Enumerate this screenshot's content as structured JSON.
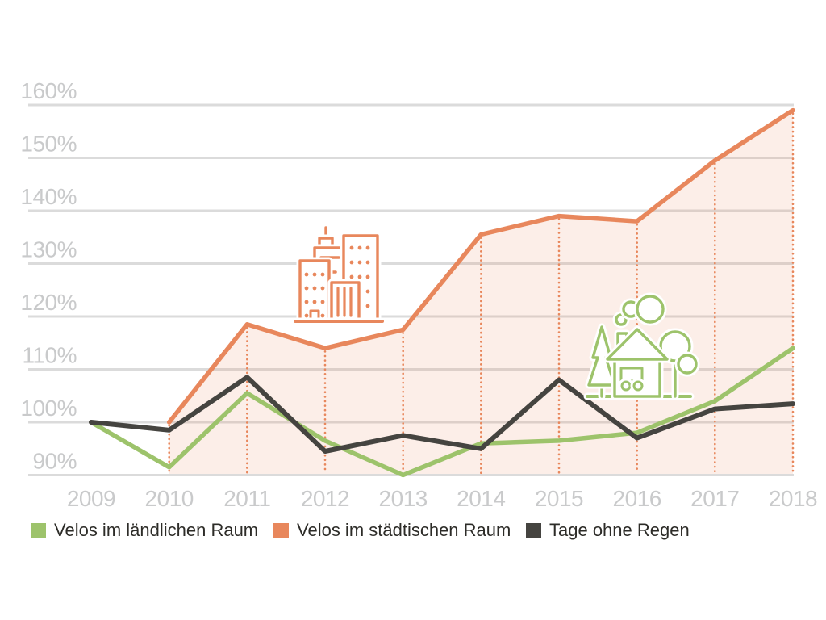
{
  "chart_data": {
    "type": "line",
    "title": "",
    "categories": [
      "2009",
      "2010",
      "2011",
      "2012",
      "2013",
      "2014",
      "2015",
      "2016",
      "2017",
      "2018"
    ],
    "y_ticks": [
      "160%",
      "150%",
      "140%",
      "130%",
      "120%",
      "110%",
      "100%",
      "90%"
    ],
    "ylim": [
      90,
      160
    ],
    "grid": "horizontal",
    "legend_position": "bottom",
    "series": [
      {
        "name": "Velos im ländlichen Raum",
        "color": "#9DC36B",
        "values": [
          100,
          91.5,
          105.5,
          96.5,
          90,
          96,
          96.5,
          98,
          104,
          114
        ]
      },
      {
        "name": "Velos im städtischen Raum",
        "color": "#E8875C",
        "values": [
          null,
          100,
          118.5,
          114,
          117.5,
          135.5,
          139,
          138,
          149.5,
          159
        ],
        "area": true,
        "area_opacity": 0.14,
        "dotted_guides": true
      },
      {
        "name": "Tage ohne Regen",
        "color": "#454440",
        "values": [
          100,
          98.5,
          108.5,
          94.5,
          97.5,
          95,
          108,
          97,
          102.5,
          103.5
        ]
      }
    ]
  },
  "icons": {
    "urban": "city-buildings-icon",
    "rural": "house-with-trees-icon"
  },
  "colors": {
    "grid": "#DBDBDB",
    "axis_labels": "#C9CACB",
    "legend_text": "#2D2C28",
    "background": "#FFFFFF"
  }
}
